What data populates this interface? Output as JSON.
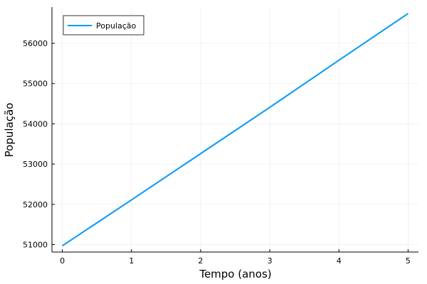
{
  "chart_data": {
    "type": "line",
    "title": "",
    "xlabel": "Tempo (anos)",
    "ylabel": "População",
    "xlim": [
      -0.15,
      5.15
    ],
    "ylim": [
      50815,
      56900
    ],
    "xticks": [
      0,
      1,
      2,
      3,
      4,
      5
    ],
    "xtick_labels": [
      "0",
      "1",
      "2",
      "3",
      "4",
      "5"
    ],
    "yticks": [
      51000,
      52000,
      53000,
      54000,
      55000,
      56000
    ],
    "ytick_labels": [
      "51000",
      "52000",
      "53000",
      "54000",
      "55000",
      "56000"
    ],
    "grid": true,
    "legend_position": "top-left",
    "series": [
      {
        "name": "População",
        "color": "#009af9",
        "x": [
          0,
          1,
          2,
          3,
          4,
          5
        ],
        "y": [
          50970,
          52110,
          53260,
          54410,
          55580,
          56740
        ]
      }
    ]
  }
}
